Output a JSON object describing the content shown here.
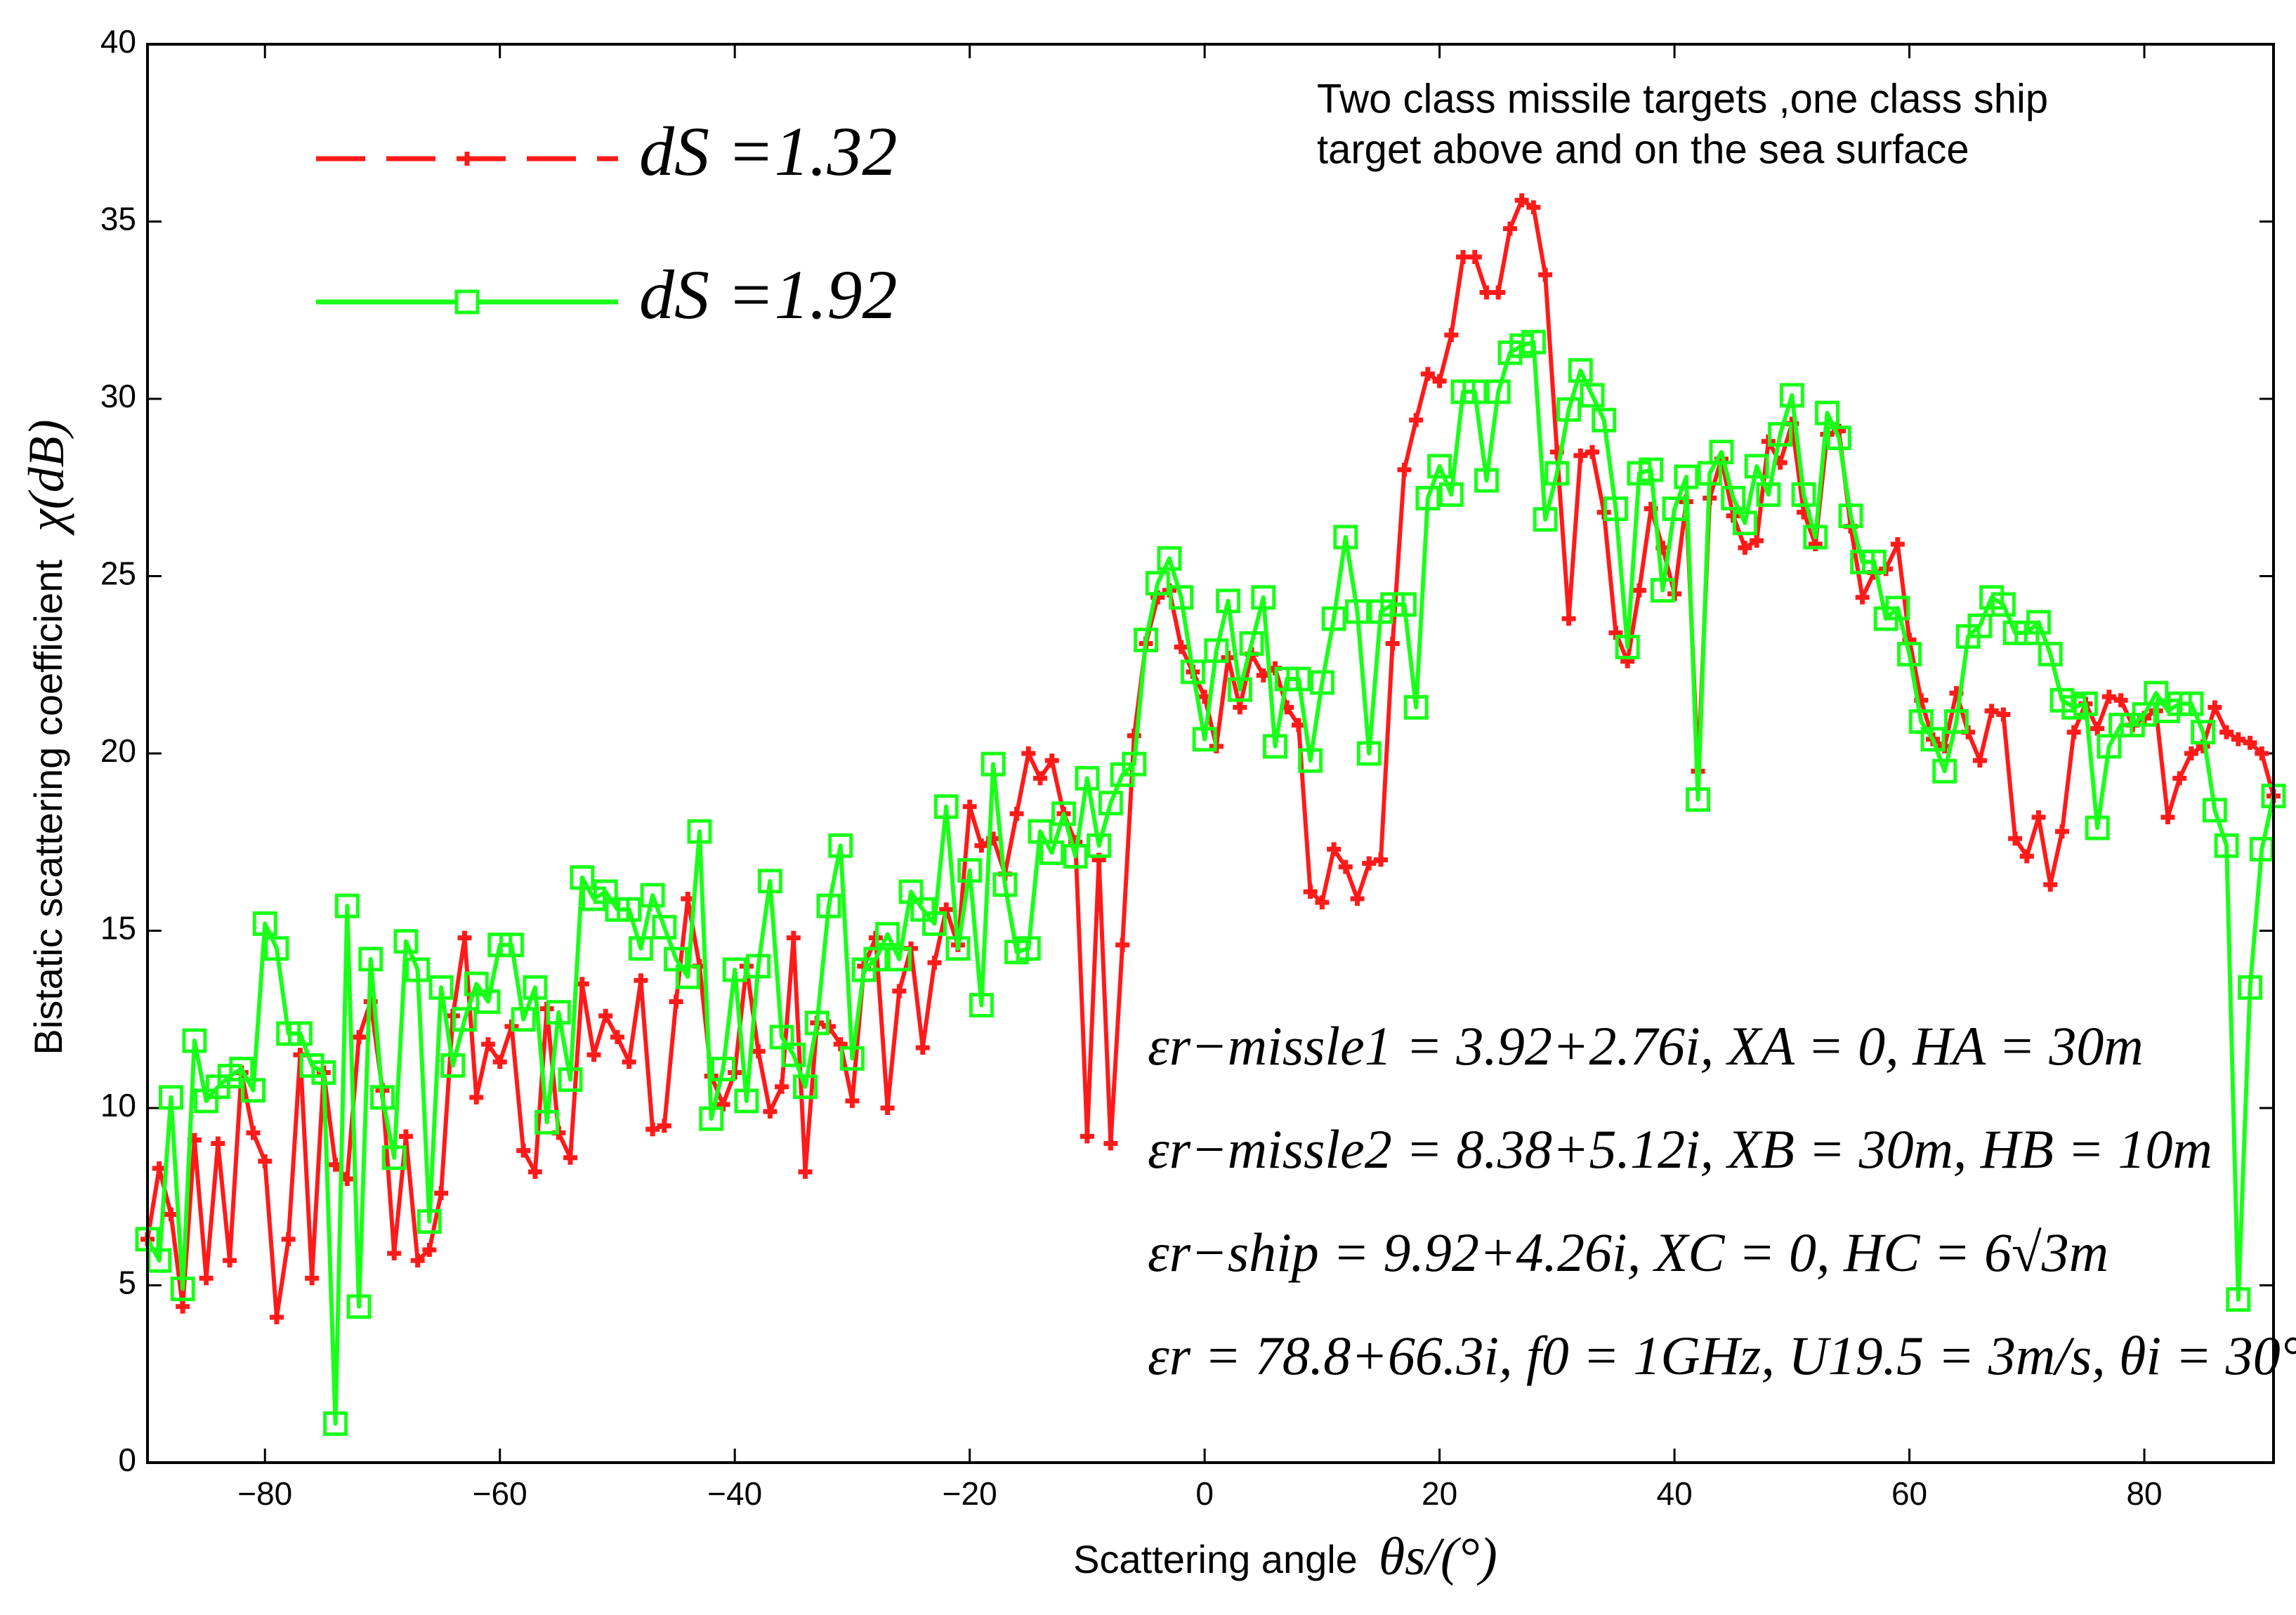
{
  "chart_data": {
    "type": "line",
    "xlabel": "Scattering angle",
    "xlabel_symbol": "θs/(°)",
    "ylabel": "Bistatic scattering coefficient",
    "ylabel_symbol": "χ(dB)",
    "annotation": [
      "Two class missile targets ,one class ship",
      "target above and on the sea surface"
    ],
    "equations": [
      "εr−missle1 = 3.92+2.76i, XA = 0, HA = 30m",
      "εr−missle2 = 8.38+5.12i, XB = 30m, HB = 10m",
      "εr−ship = 9.92+4.26i, XC = 0, HC = 6√3m",
      "εr = 78.8+66.3i, f0 = 1GHz, U19.5 = 3m/s, θi = 30°"
    ],
    "legend": "upper left",
    "xlim": [
      -90,
      91
    ],
    "ylim": [
      0,
      40
    ],
    "xticks": [
      {
        "value": -80,
        "label": "−80"
      },
      {
        "value": -60,
        "label": "−60"
      },
      {
        "value": -40,
        "label": "−40"
      },
      {
        "value": -20,
        "label": "−20"
      },
      0,
      20,
      40,
      60,
      80
    ],
    "yticks": [
      0,
      5,
      10,
      15,
      20,
      25,
      30,
      35,
      40
    ],
    "x": [
      -90,
      -89,
      -88,
      -87,
      -86,
      -85,
      -84,
      -83,
      -82,
      -81,
      -80,
      -79,
      -78,
      -77,
      -76,
      -75,
      -74,
      -73,
      -72,
      -71,
      -70,
      -69,
      -68,
      -67,
      -66,
      -65,
      -64,
      -63,
      -62,
      -61,
      -60,
      -59,
      -58,
      -57,
      -56,
      -55,
      -54,
      -53,
      -52,
      -51,
      -50,
      -49,
      -48,
      -47,
      -46,
      -45,
      -44,
      -43,
      -42,
      -41,
      -40,
      -39,
      -38,
      -37,
      -36,
      -35,
      -34,
      -33,
      -32,
      -31,
      -30,
      -29,
      -28,
      -27,
      -26,
      -25,
      -24,
      -23,
      -22,
      -21,
      -20,
      -19,
      -18,
      -17,
      -16,
      -15,
      -14,
      -13,
      -12,
      -11,
      -10,
      -9,
      -8,
      -7,
      -6,
      -5,
      -4,
      -3,
      -2,
      -1,
      0,
      1,
      2,
      3,
      4,
      5,
      6,
      7,
      8,
      9,
      10,
      11,
      12,
      13,
      14,
      15,
      16,
      17,
      18,
      19,
      20,
      21,
      22,
      23,
      24,
      25,
      26,
      27,
      28,
      29,
      30,
      31,
      32,
      33,
      34,
      35,
      36,
      37,
      38,
      39,
      40,
      41,
      42,
      43,
      44,
      45,
      46,
      47,
      48,
      49,
      50,
      51,
      52,
      53,
      54,
      55,
      56,
      57,
      58,
      59,
      60,
      61,
      62,
      63,
      64,
      65,
      66,
      67,
      68,
      69,
      70,
      71,
      72,
      73,
      74,
      75,
      76,
      77,
      78,
      79,
      80,
      81,
      82,
      83,
      84,
      85,
      86,
      87,
      88,
      89,
      90,
      91
    ],
    "series": [
      {
        "name": "dS =1.32",
        "color": "#ff1a1a",
        "marker": "plus",
        "values": [
          6.3,
          8.3,
          7,
          4.4,
          9.1,
          5.2,
          9,
          5.7,
          11,
          9.3,
          8.5,
          4.1,
          6.3,
          11.5,
          5.2,
          11,
          8.4,
          8,
          12,
          13,
          10.5,
          5.9,
          9.2,
          5.7,
          6,
          7.6,
          12.6,
          14.8,
          10.3,
          11.8,
          11.3,
          12.3,
          8.8,
          8.2,
          12.8,
          9.3,
          8.6,
          13.5,
          11.5,
          12.6,
          12,
          11.3,
          13.6,
          9.4,
          9.5,
          13,
          15.9,
          14,
          10.9,
          10.1,
          11,
          14,
          11.6,
          9.9,
          10.6,
          14.8,
          8.2,
          12.4,
          12.3,
          11.8,
          10.2,
          14,
          14.8,
          10,
          13.3,
          14.5,
          11.7,
          14.1,
          15.6,
          14.6,
          18.5,
          17.4,
          17.6,
          16.6,
          18.3,
          20,
          19.3,
          19.8,
          18.3,
          17.5,
          9.2,
          17,
          9,
          14.6,
          20.5,
          23.1,
          24.4,
          24.6,
          23,
          22.3,
          21.6,
          20.2,
          22.7,
          21.3,
          22.8,
          22.2,
          22.4,
          21.3,
          20.8,
          16.1,
          15.8,
          17.3,
          16.8,
          15.9,
          16.9,
          17,
          23.1,
          28,
          29.4,
          30.7,
          30.5,
          31.8,
          34,
          34,
          33,
          33,
          34.8,
          35.6,
          35.4,
          33.5,
          28.5,
          23.8,
          28.4,
          28.5,
          26.8,
          23.4,
          22.6,
          24.6,
          26.9,
          25.8,
          24.5,
          27.1,
          19.5,
          27.2,
          28.3,
          26.7,
          25.8,
          26,
          28.8,
          28.2,
          29.3,
          26.8,
          25.9,
          29,
          29.1,
          26.4,
          24.4,
          25.1,
          25.2,
          25.9,
          23.2,
          21.5,
          20.4,
          20.2,
          21.7,
          20.6,
          19.8,
          21.2,
          21.1,
          17.6,
          17.1,
          18.2,
          16.3,
          17.8,
          20.6,
          21.4,
          20.7,
          21.6,
          21.5,
          20.8,
          21,
          21.2,
          18.2,
          19.3,
          20,
          20.2,
          21.3,
          20.6,
          20.4,
          20.3,
          20,
          18.8
        ]
      },
      {
        "name": "dS =1.92",
        "color": "#19ff19",
        "marker": "square",
        "values": [
          6.3,
          5.7,
          10.3,
          4.9,
          11.9,
          10.2,
          10.6,
          10.9,
          11.1,
          10.5,
          15.2,
          14.5,
          12.1,
          12.1,
          11.2,
          11,
          1.1,
          15.7,
          4.4,
          14.2,
          10.3,
          8.6,
          14.7,
          13.9,
          6.8,
          13.4,
          11.2,
          12.5,
          13.5,
          13,
          14.6,
          14.6,
          12.5,
          13.4,
          9.6,
          12.7,
          10.8,
          16.5,
          15.9,
          16.1,
          15.6,
          15.6,
          14.5,
          16,
          15.1,
          14.2,
          13.7,
          17.8,
          9.7,
          11.1,
          13.9,
          10.2,
          14,
          16.4,
          12,
          11.5,
          10.6,
          12.4,
          15.7,
          17.4,
          11.4,
          13.9,
          14.2,
          14.9,
          14.2,
          16.1,
          15.6,
          15.2,
          18.5,
          14.5,
          16.7,
          12.9,
          19.7,
          16.3,
          14.4,
          14.5,
          17.8,
          17.2,
          18.3,
          17.1,
          19.3,
          17.4,
          18.6,
          19.4,
          19.7,
          23.2,
          24.8,
          25.5,
          24.4,
          22.3,
          20.4,
          22.9,
          24.3,
          21.8,
          23.1,
          24.4,
          20.2,
          22.1,
          22.1,
          19.8,
          22,
          23.8,
          26.1,
          24,
          20,
          24,
          24.2,
          24.2,
          21.3,
          27.2,
          28.1,
          27.3,
          30.2,
          30.2,
          27.7,
          30.2,
          31.3,
          31.5,
          31.6,
          26.6,
          27.9,
          29.7,
          30.8,
          30.1,
          29.4,
          26.9,
          23,
          27.9,
          28,
          24.6,
          26.9,
          27.8,
          18.7,
          27.9,
          28.5,
          27.2,
          26.5,
          28.1,
          27.3,
          29,
          30.1,
          27.3,
          26.1,
          29.6,
          28.9,
          26.7,
          25.4,
          25.4,
          23.8,
          24.1,
          22.8,
          20.9,
          20.4,
          19.5,
          20.9,
          23.3,
          23.6,
          24.4,
          24.2,
          23.4,
          23.4,
          23.7,
          22.8,
          21.5,
          21.3,
          21.4,
          17.9,
          20.2,
          20.8,
          20.8,
          21.1,
          21.7,
          21.2,
          21.4,
          21.4,
          20.6,
          18.4,
          17.4,
          4.6,
          13.4,
          17.3,
          18.8
        ]
      }
    ]
  }
}
